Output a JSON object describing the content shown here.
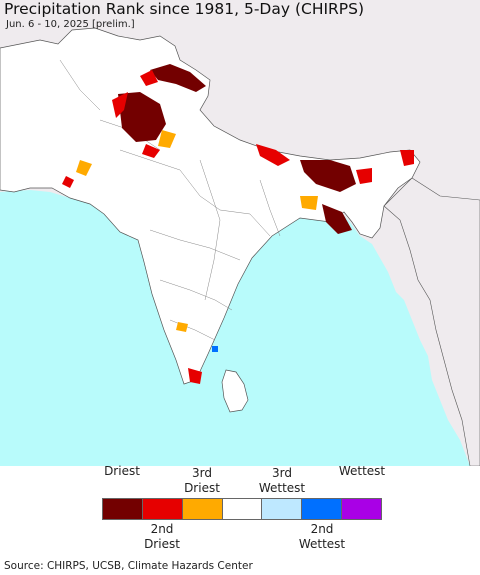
{
  "title": "Precipitation Rank since 1981, 5-Day (CHIRPS)",
  "subtitle": "Jun. 6 - 10, 2025 [prelim.]",
  "colors": {
    "ocean": "#b8fbfb",
    "outside_land": "#efebee",
    "land": "#ffffff",
    "border": "#555555"
  },
  "legend": {
    "top_labels": [
      {
        "line1": "",
        "line2": "Driest"
      },
      {
        "line1": "3rd",
        "line2": "Driest"
      },
      {
        "line1": "3rd",
        "line2": "Wettest"
      },
      {
        "line1": "",
        "line2": "Wettest"
      }
    ],
    "bottom_labels": [
      {
        "line1": "2nd",
        "line2": "Driest"
      },
      {
        "line1": "2nd",
        "line2": "Wettest"
      }
    ],
    "swatches": [
      {
        "color": "#730000"
      },
      {
        "color": "#e60000"
      },
      {
        "color": "#ffaa00"
      },
      {
        "color": "#ffffff"
      },
      {
        "color": "#bee8ff"
      },
      {
        "color": "#0070ff"
      },
      {
        "color": "#a900e6"
      }
    ]
  },
  "source": "Source: CHIRPS, UCSB, Climate Hazards Center"
}
